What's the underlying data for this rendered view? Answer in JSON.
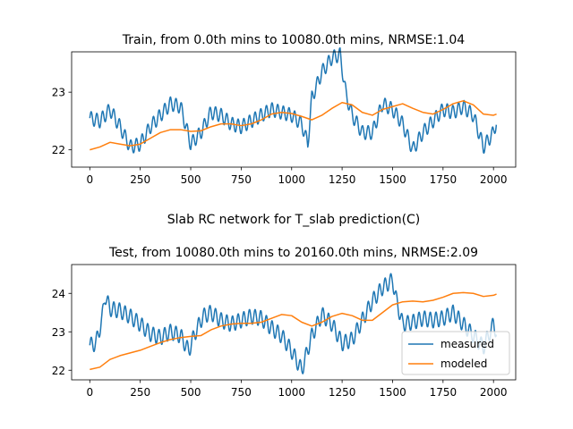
{
  "figure": {
    "suptitle": "Slab RC network for T_slab prediction(C)"
  },
  "colors": {
    "measured": "#1f77b4",
    "modeled": "#ff7f0e",
    "axes": "#000000",
    "legend_border": "#cccccc"
  },
  "chart_data": [
    {
      "type": "line",
      "title": "Train, from 0.0th mins to 10080.0th mins, NRMSE:1.04",
      "xlabel": "",
      "ylabel": "",
      "xlim": [
        -90,
        2110
      ],
      "ylim": [
        21.7,
        23.7
      ],
      "xticks": [
        0,
        250,
        500,
        750,
        1000,
        1250,
        1500,
        1750,
        2000
      ],
      "yticks": [
        22,
        23
      ],
      "grid": false,
      "legend": null,
      "series": [
        {
          "name": "measured",
          "x": [
            0,
            50,
            100,
            150,
            200,
            250,
            300,
            350,
            400,
            450,
            500,
            550,
            600,
            650,
            700,
            750,
            800,
            850,
            900,
            950,
            1000,
            1050,
            1080,
            1100,
            1150,
            1200,
            1240,
            1270,
            1300,
            1350,
            1400,
            1450,
            1500,
            1550,
            1600,
            1650,
            1700,
            1750,
            1800,
            1850,
            1900,
            1950,
            2000,
            2015
          ],
          "y": [
            22.55,
            22.5,
            22.7,
            22.4,
            22.05,
            22.1,
            22.4,
            22.6,
            22.8,
            22.75,
            22.1,
            22.3,
            22.65,
            22.6,
            22.45,
            22.4,
            22.5,
            22.6,
            22.7,
            22.65,
            22.6,
            22.45,
            22.1,
            22.9,
            23.35,
            23.6,
            23.65,
            22.95,
            22.6,
            22.3,
            22.3,
            22.8,
            22.7,
            22.45,
            22.0,
            22.3,
            22.5,
            22.7,
            22.65,
            22.75,
            22.6,
            22.05,
            22.3,
            22.5
          ],
          "wiggle": {
            "amplitude": 0.12,
            "period": 28
          }
        },
        {
          "name": "modeled",
          "x": [
            0,
            50,
            100,
            150,
            200,
            250,
            300,
            350,
            400,
            450,
            500,
            550,
            600,
            650,
            700,
            750,
            800,
            850,
            900,
            950,
            1000,
            1050,
            1100,
            1150,
            1200,
            1250,
            1300,
            1350,
            1400,
            1450,
            1500,
            1550,
            1600,
            1650,
            1700,
            1750,
            1800,
            1850,
            1900,
            1950,
            2000,
            2015
          ],
          "y": [
            22.0,
            22.05,
            22.13,
            22.1,
            22.07,
            22.1,
            22.2,
            22.3,
            22.35,
            22.35,
            22.32,
            22.33,
            22.4,
            22.45,
            22.45,
            22.42,
            22.45,
            22.52,
            22.62,
            22.65,
            22.63,
            22.58,
            22.52,
            22.6,
            22.72,
            22.82,
            22.78,
            22.65,
            22.6,
            22.7,
            22.75,
            22.8,
            22.72,
            22.65,
            22.62,
            22.7,
            22.8,
            22.85,
            22.78,
            22.62,
            22.6,
            22.62
          ]
        }
      ]
    },
    {
      "type": "line",
      "title": "Test, from 10080.0th mins to 20160.0th mins, NRMSE:2.09",
      "xlabel": "",
      "ylabel": "",
      "xlim": [
        -90,
        2110
      ],
      "ylim": [
        21.75,
        24.75
      ],
      "xticks": [
        0,
        250,
        500,
        750,
        1000,
        1250,
        1500,
        1750,
        2000
      ],
      "yticks": [
        22,
        23,
        24
      ],
      "grid": false,
      "legend": {
        "placement": "lower-right",
        "entries": [
          "measured",
          "modeled"
        ]
      },
      "series": [
        {
          "name": "measured",
          "x": [
            0,
            30,
            60,
            75,
            100,
            150,
            200,
            250,
            300,
            350,
            400,
            450,
            490,
            520,
            560,
            600,
            650,
            700,
            750,
            800,
            850,
            900,
            950,
            1000,
            1050,
            1100,
            1150,
            1200,
            1250,
            1300,
            1350,
            1400,
            1450,
            1500,
            1520,
            1550,
            1600,
            1650,
            1700,
            1750,
            1800,
            1850,
            1900,
            1950,
            2000,
            2015
          ],
          "y": [
            22.65,
            22.7,
            23.3,
            23.95,
            23.6,
            23.55,
            23.4,
            23.2,
            22.95,
            22.85,
            23.0,
            22.9,
            22.5,
            22.95,
            23.4,
            23.5,
            23.3,
            23.2,
            23.3,
            23.4,
            23.35,
            23.1,
            22.9,
            22.5,
            22.0,
            22.9,
            23.45,
            23.2,
            22.7,
            22.8,
            23.3,
            23.8,
            24.15,
            24.35,
            23.8,
            23.2,
            23.25,
            23.35,
            23.3,
            23.35,
            23.5,
            23.2,
            22.9,
            22.6,
            23.2,
            23.0
          ],
          "wiggle": {
            "amplitude": 0.2,
            "period": 28
          }
        },
        {
          "name": "modeled",
          "x": [
            0,
            50,
            100,
            150,
            200,
            250,
            300,
            350,
            400,
            450,
            500,
            550,
            600,
            650,
            700,
            750,
            800,
            850,
            900,
            950,
            1000,
            1050,
            1100,
            1150,
            1200,
            1250,
            1300,
            1350,
            1400,
            1450,
            1500,
            1550,
            1600,
            1650,
            1700,
            1750,
            1800,
            1850,
            1900,
            1950,
            2000,
            2015
          ],
          "y": [
            22.02,
            22.08,
            22.28,
            22.38,
            22.45,
            22.52,
            22.62,
            22.72,
            22.8,
            22.85,
            22.88,
            22.9,
            23.05,
            23.15,
            23.2,
            23.22,
            23.22,
            23.25,
            23.35,
            23.45,
            23.42,
            23.25,
            23.15,
            23.25,
            23.4,
            23.48,
            23.42,
            23.3,
            23.3,
            23.5,
            23.7,
            23.78,
            23.8,
            23.78,
            23.82,
            23.9,
            24.0,
            24.02,
            24.0,
            23.92,
            23.95,
            23.98
          ]
        }
      ]
    }
  ]
}
